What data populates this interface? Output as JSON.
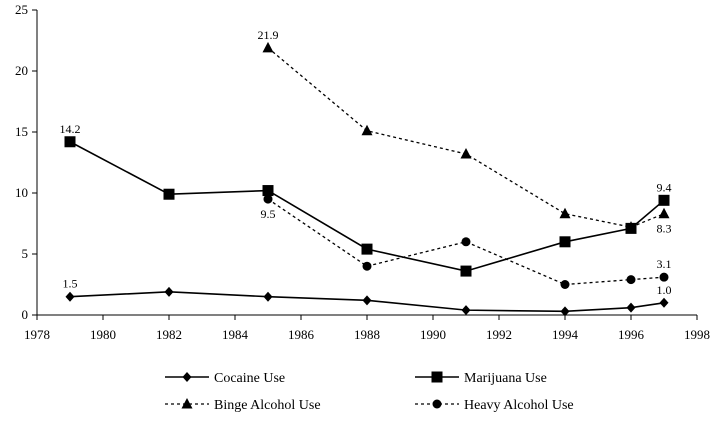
{
  "chart_data": {
    "type": "line",
    "title": "",
    "xlabel": "",
    "ylabel": "",
    "xlim": [
      1978,
      1998
    ],
    "ylim": [
      0,
      25
    ],
    "xticks": [
      1978,
      1980,
      1982,
      1984,
      1986,
      1988,
      1990,
      1992,
      1994,
      1996,
      1998
    ],
    "yticks": [
      0,
      5,
      10,
      15,
      20,
      25
    ],
    "grid": false,
    "legend_position": "bottom",
    "series": [
      {
        "name": "Cocaine Use",
        "key": "cocaine",
        "line_style": "solid",
        "marker": "diamond",
        "points": [
          [
            1979,
            1.5
          ],
          [
            1982,
            1.9
          ],
          [
            1985,
            1.5
          ],
          [
            1988,
            1.2
          ],
          [
            1991,
            0.4
          ],
          [
            1994,
            0.3
          ],
          [
            1996,
            0.6
          ],
          [
            1997,
            1.0
          ]
        ],
        "labels": [
          {
            "x": 1979,
            "y": 1.5,
            "text": "1.5",
            "pos": "above"
          },
          {
            "x": 1997,
            "y": 1.0,
            "text": "1.0",
            "pos": "above"
          }
        ]
      },
      {
        "name": "Marijuana Use",
        "key": "marijuana",
        "line_style": "solid",
        "marker": "square",
        "points": [
          [
            1979,
            14.2
          ],
          [
            1982,
            9.9
          ],
          [
            1985,
            10.2
          ],
          [
            1988,
            5.4
          ],
          [
            1991,
            3.6
          ],
          [
            1994,
            6.0
          ],
          [
            1996,
            7.1
          ],
          [
            1997,
            9.4
          ]
        ],
        "labels": [
          {
            "x": 1979,
            "y": 14.2,
            "text": "14.2",
            "pos": "above"
          },
          {
            "x": 1997,
            "y": 9.4,
            "text": "9.4",
            "pos": "above"
          }
        ]
      },
      {
        "name": "Binge Alcohol Use",
        "key": "binge",
        "line_style": "dashed",
        "marker": "triangle",
        "points": [
          [
            1985,
            21.9
          ],
          [
            1988,
            15.1
          ],
          [
            1991,
            13.2
          ],
          [
            1994,
            8.3
          ],
          [
            1996,
            7.2
          ],
          [
            1997,
            8.3
          ]
        ],
        "labels": [
          {
            "x": 1985,
            "y": 21.9,
            "text": "21.9",
            "pos": "above"
          },
          {
            "x": 1997,
            "y": 8.3,
            "text": "8.3",
            "pos": "below"
          }
        ]
      },
      {
        "name": "Heavy Alcohol Use",
        "key": "heavy",
        "line_style": "dashed",
        "marker": "circle",
        "points": [
          [
            1985,
            9.5
          ],
          [
            1988,
            4.0
          ],
          [
            1991,
            6.0
          ],
          [
            1994,
            2.5
          ],
          [
            1996,
            2.9
          ],
          [
            1997,
            3.1
          ]
        ],
        "labels": [
          {
            "x": 1985,
            "y": 9.5,
            "text": "9.5",
            "pos": "below"
          },
          {
            "x": 1997,
            "y": 3.1,
            "text": "3.1",
            "pos": "above"
          }
        ]
      }
    ]
  }
}
